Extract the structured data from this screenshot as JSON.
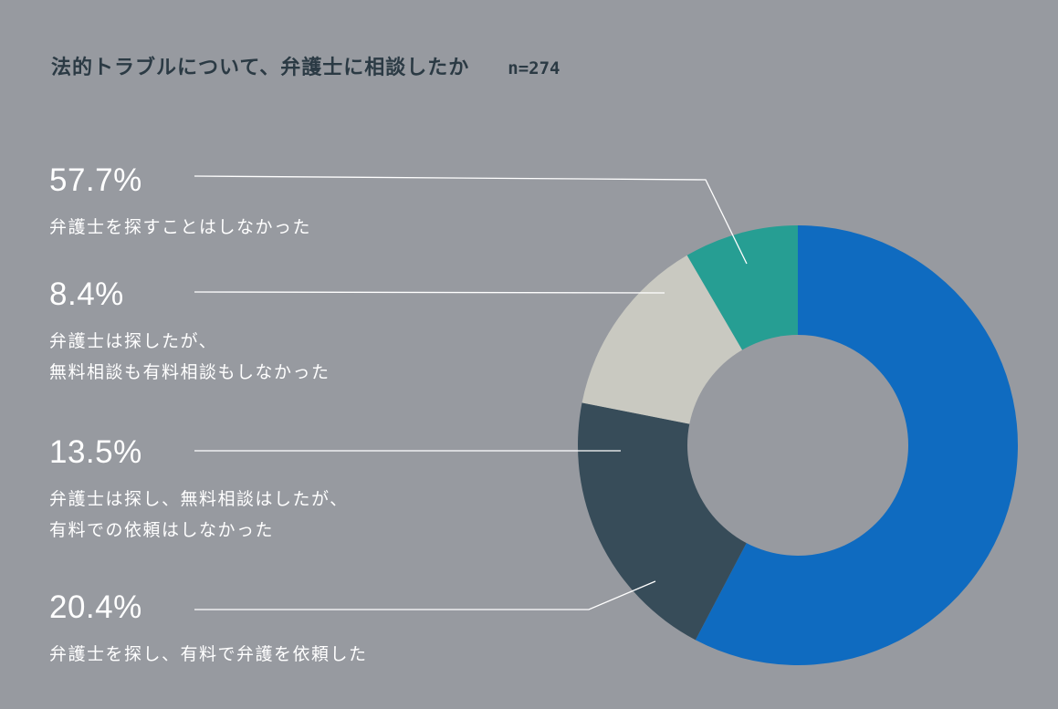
{
  "header": {
    "title": "法的トラブルについて、弁護士に相談したか",
    "sample": "n=274"
  },
  "colors": {
    "background": "#979aa0",
    "leader_line": "#ffffff",
    "donut_hole": "#979aa0"
  },
  "chart_data": {
    "type": "pie",
    "style": "donut",
    "title": "法的トラブルについて、弁護士に相談したか",
    "start": "12 o'clock, clockwise",
    "slices": [
      {
        "value": 57.7,
        "label": "57.7%",
        "description": [
          "弁護士を探すことはしなかった"
        ],
        "color": "#0f6bc0"
      },
      {
        "value": 20.4,
        "label": "20.4%",
        "description": [
          "弁護士を探し、有料で弁護を依頼した"
        ],
        "color": "#374c59"
      },
      {
        "value": 13.5,
        "label": "13.5%",
        "description": [
          "弁護士は探し、無料相談はしたが、",
          "有料での依頼はしなかった"
        ],
        "color": "#c9c9c1"
      },
      {
        "value": 8.4,
        "label": "8.4%",
        "description": [
          "弁護士は探したが、",
          "無料相談も有料相談もしなかった"
        ],
        "color": "#269e93"
      }
    ]
  }
}
